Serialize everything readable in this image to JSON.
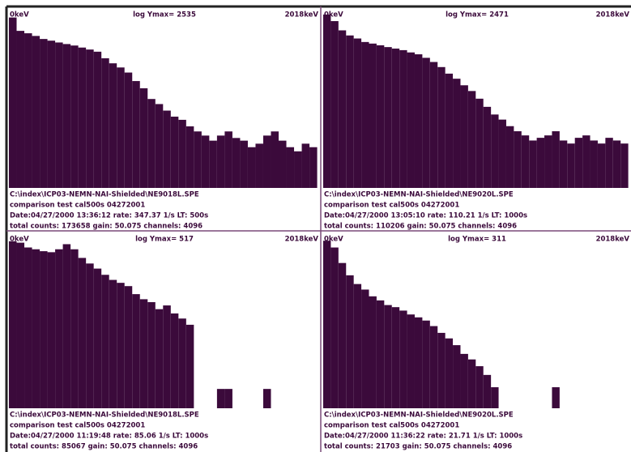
{
  "chart_data": [
    {
      "type": "histogram",
      "title": "log Ymax= 2535",
      "x_start_label": "0keV",
      "x_end_label": "2018keV",
      "log_scale": true,
      "xlim": [
        0,
        2018
      ],
      "ylim": [
        1,
        2535
      ],
      "color": "#3b0a3b",
      "bins": [
        0,
        50,
        100,
        150,
        200,
        250,
        300,
        350,
        400,
        450,
        500,
        550,
        600,
        650,
        700,
        750,
        800,
        850,
        900,
        950,
        1000,
        1050,
        1100,
        1150,
        1200,
        1250,
        1300,
        1350,
        1400,
        1450,
        1500,
        1550,
        1600,
        1650,
        1700,
        1750,
        1800,
        1850,
        1900,
        1950,
        2000
      ],
      "values": [
        1800,
        1000,
        900,
        800,
        700,
        650,
        600,
        560,
        525,
        480,
        440,
        400,
        300,
        240,
        200,
        160,
        110,
        80,
        50,
        40,
        30,
        23,
        20,
        15,
        12,
        10,
        8,
        10,
        12,
        9,
        8,
        6,
        7,
        10,
        12,
        8,
        6,
        5,
        7,
        6
      ],
      "info": [
        "C:\\index\\ICP03-NEMN-NAI-Shielded\\NE9018L.SPE",
        "comparison test cal500s 04272001",
        "Date:04/27/2000 13:36:12 rate: 347.37 1/s LT: 500s",
        "total counts: 173658 gain: 50.075 channels: 4096"
      ]
    },
    {
      "type": "histogram",
      "title": "log Ymax= 2471",
      "x_start_label": "0keV",
      "x_end_label": "2018keV",
      "log_scale": true,
      "xlim": [
        0,
        2018
      ],
      "ylim": [
        1,
        2471
      ],
      "color": "#3b0a3b",
      "bins": [
        0,
        50,
        100,
        150,
        200,
        250,
        300,
        350,
        400,
        450,
        500,
        550,
        600,
        650,
        700,
        750,
        800,
        850,
        900,
        950,
        1000,
        1050,
        1100,
        1150,
        1200,
        1250,
        1300,
        1350,
        1400,
        1450,
        1500,
        1550,
        1600,
        1650,
        1700,
        1750,
        1800,
        1850,
        1900,
        1950,
        2000
      ],
      "values": [
        2000,
        1500,
        1000,
        800,
        700,
        600,
        560,
        520,
        480,
        450,
        420,
        380,
        350,
        300,
        250,
        200,
        150,
        120,
        90,
        70,
        50,
        35,
        25,
        20,
        15,
        12,
        10,
        8,
        9,
        10,
        12,
        8,
        7,
        9,
        10,
        8,
        7,
        9,
        8,
        7
      ],
      "info": [
        "C:\\index\\ICP03-NEMN-NAI-Shielded\\NE9020L.SPE",
        "comparison test cal500s 04272001",
        "Date:04/27/2000 13:05:10 rate: 110.21 1/s LT: 1000s",
        "total counts: 110206 gain: 50.075 channels: 4096"
      ]
    },
    {
      "type": "histogram",
      "title": "log Ymax= 517",
      "x_start_label": "0keV",
      "x_end_label": "2018keV",
      "log_scale": true,
      "xlim": [
        0,
        2018
      ],
      "ylim": [
        1,
        517
      ],
      "color": "#3b0a3b",
      "bins": [
        0,
        50,
        100,
        150,
        200,
        250,
        300,
        350,
        400,
        450,
        500,
        550,
        600,
        650,
        700,
        750,
        800,
        850,
        900,
        950,
        1000,
        1050,
        1100,
        1150,
        1200,
        1250,
        1300,
        1350,
        1400,
        1450,
        1500,
        1550,
        1600,
        1650,
        1700,
        1750,
        1800,
        1850,
        1900,
        1950,
        2000
      ],
      "values": [
        400,
        380,
        320,
        300,
        280,
        270,
        300,
        360,
        300,
        220,
        180,
        150,
        120,
        100,
        90,
        80,
        60,
        50,
        45,
        35,
        40,
        30,
        25,
        20,
        1,
        1,
        1,
        2,
        2,
        1,
        1,
        1,
        1,
        2,
        1,
        1,
        1,
        1,
        1,
        1
      ],
      "info": [
        "C:\\index\\ICP03-NEMN-NAI-Shielded\\NE9018L.SPE",
        "comparison test cal500s 04272001",
        "Date:04/27/2000 11:19:48 rate: 85.06 1/s LT: 1000s",
        "total counts: 85067 gain: 50.075 channels: 4096"
      ]
    },
    {
      "type": "histogram",
      "title": "log Ymax= 311",
      "x_start_label": "0keV",
      "x_end_label": "2018keV",
      "log_scale": true,
      "xlim": [
        0,
        2018
      ],
      "ylim": [
        1,
        311
      ],
      "color": "#3b0a3b",
      "bins": [
        0,
        50,
        100,
        150,
        200,
        250,
        300,
        350,
        400,
        450,
        500,
        550,
        600,
        650,
        700,
        750,
        800,
        850,
        900,
        950,
        1000,
        1050,
        1100,
        1150,
        1200,
        1250,
        1300,
        1350,
        1400,
        1450,
        1500,
        1550,
        1600,
        1650,
        1700,
        1750,
        1800,
        1850,
        1900,
        1950,
        2000
      ],
      "values": [
        250,
        200,
        120,
        80,
        60,
        50,
        40,
        35,
        30,
        28,
        25,
        22,
        20,
        18,
        15,
        12,
        10,
        8,
        6,
        5,
        4,
        3,
        2,
        1,
        1,
        1,
        1,
        1,
        1,
        1,
        2,
        1,
        1,
        1,
        1,
        1,
        1,
        1,
        1,
        1
      ],
      "info": [
        "C:\\index\\ICP03-NEMN-NAI-Shielded\\NE9020L.SPE",
        "comparison test cal500s 04272001",
        "Date:04/27/2000 11:36:22 rate: 21.71 1/s LT: 1000s",
        "total counts: 21703 gain: 50.075 channels: 4096"
      ]
    }
  ]
}
